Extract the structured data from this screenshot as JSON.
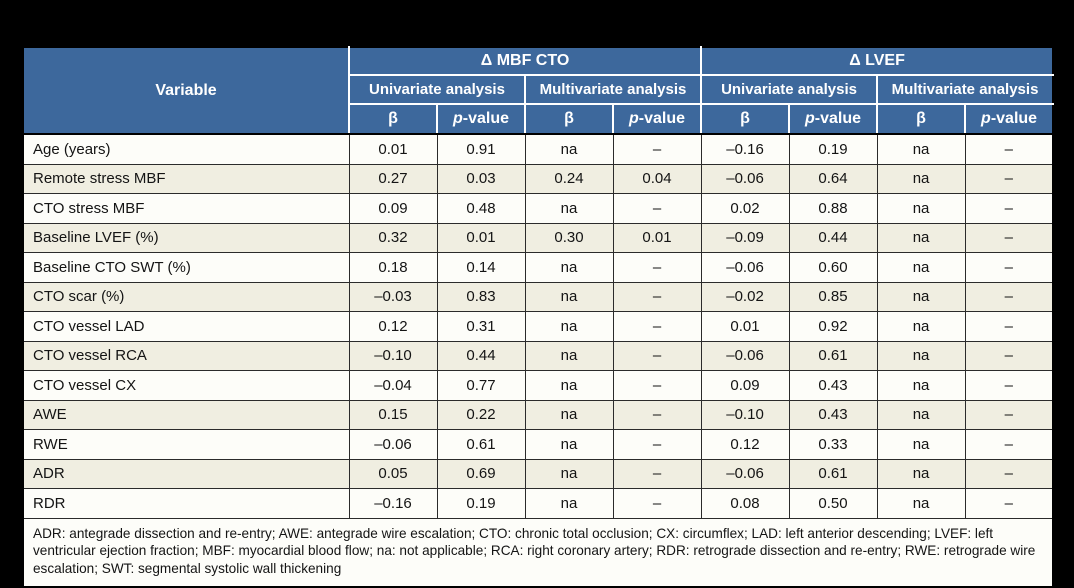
{
  "table": {
    "title_groups": {
      "variable": "Variable",
      "mbf_cto": "Δ MBF CTO",
      "lvef": "Δ LVEF"
    },
    "analysis_labels": {
      "univariate": "Univariate analysis",
      "multivariate": "Multivariate analysis"
    },
    "stat_labels": {
      "beta": "β",
      "p_italic": "p",
      "p_rest": "-value"
    },
    "rows": [
      {
        "variable": "Age (years)",
        "values": [
          "0.01",
          "0.91",
          "na",
          "–",
          "–0.16",
          "0.19",
          "na",
          "–"
        ]
      },
      {
        "variable": "Remote stress MBF",
        "values": [
          "0.27",
          "0.03",
          "0.24",
          "0.04",
          "–0.06",
          "0.64",
          "na",
          "–"
        ]
      },
      {
        "variable": "CTO stress MBF",
        "values": [
          "0.09",
          "0.48",
          "na",
          "–",
          "0.02",
          "0.88",
          "na",
          "–"
        ]
      },
      {
        "variable": "Baseline LVEF (%)",
        "values": [
          "0.32",
          "0.01",
          "0.30",
          "0.01",
          "–0.09",
          "0.44",
          "na",
          "–"
        ]
      },
      {
        "variable": "Baseline CTO SWT (%)",
        "values": [
          "0.18",
          "0.14",
          "na",
          "–",
          "–0.06",
          "0.60",
          "na",
          "–"
        ]
      },
      {
        "variable": "CTO scar (%)",
        "values": [
          "–0.03",
          "0.83",
          "na",
          "–",
          "–0.02",
          "0.85",
          "na",
          "–"
        ]
      },
      {
        "variable": "CTO vessel LAD",
        "values": [
          "0.12",
          "0.31",
          "na",
          "–",
          "0.01",
          "0.92",
          "na",
          "–"
        ]
      },
      {
        "variable": "CTO vessel RCA",
        "values": [
          "–0.10",
          "0.44",
          "na",
          "–",
          "–0.06",
          "0.61",
          "na",
          "–"
        ]
      },
      {
        "variable": "CTO vessel CX",
        "values": [
          "–0.04",
          "0.77",
          "na",
          "–",
          "0.09",
          "0.43",
          "na",
          "–"
        ]
      },
      {
        "variable": "AWE",
        "values": [
          "0.15",
          "0.22",
          "na",
          "–",
          "–0.10",
          "0.43",
          "na",
          "–"
        ]
      },
      {
        "variable": "RWE",
        "values": [
          "–0.06",
          "0.61",
          "na",
          "–",
          "0.12",
          "0.33",
          "na",
          "–"
        ]
      },
      {
        "variable": "ADR",
        "values": [
          "0.05",
          "0.69",
          "na",
          "–",
          "–0.06",
          "0.61",
          "na",
          "–"
        ]
      },
      {
        "variable": "RDR",
        "values": [
          "–0.16",
          "0.19",
          "na",
          "–",
          "0.08",
          "0.50",
          "na",
          "–"
        ]
      }
    ],
    "footnote": "ADR: antegrade dissection and re-entry; AWE: antegrade wire escalation; CTO: chronic total occlusion; CX: circumflex; LAD: left anterior descending; LVEF: left ventricular ejection fraction; MBF: myocardial blood flow; na: not applicable; RCA: right coronary artery; RDR: retrograde dissection and re-entry; RWE: retrograde wire escalation; SWT: segmental systolic wall thickening"
  },
  "colors": {
    "header_blue": "#3d689c",
    "row_beige": "#f0eee1",
    "row_white": "#fdfdf9",
    "grid_dark": "#2b2b2b",
    "header_text": "#ffffff",
    "body_text": "#141414",
    "page_background": "#000000"
  }
}
